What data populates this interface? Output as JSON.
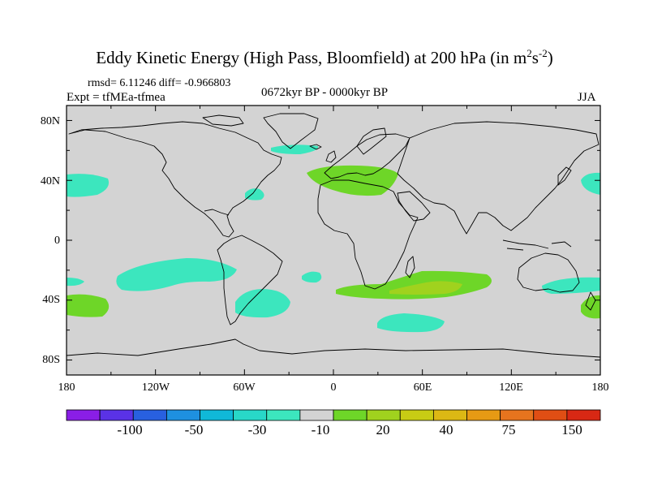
{
  "title": {
    "text": "Eddy Kinetic Energy (High Pass, Bloomfield) at 200 hPa (in m",
    "sup1": "2",
    "mid": "s",
    "sup2": "-2",
    "end": ")"
  },
  "subtitle": {
    "stats": "rmsd= 6.11246 diff= -0.966803",
    "expt": "Expt = tfMEa-tfmea",
    "period": "0672kyr BP - 0000kyr BP",
    "season": "JJA"
  },
  "map": {
    "lat_labels": [
      "80N",
      "40N",
      "0",
      "40S",
      "80S"
    ],
    "lon_labels": [
      "180",
      "120W",
      "60W",
      "0",
      "60E",
      "120E",
      "180"
    ],
    "background_color": "#d3d3d3"
  },
  "colorbar": {
    "colors": [
      "#8a1ee6",
      "#5a32e6",
      "#2860e0",
      "#1e90e0",
      "#10b8d8",
      "#28d8c8",
      "#3ce6be",
      "#d3d3d3",
      "#6ed628",
      "#a0d21e",
      "#c8cc14",
      "#dcb814",
      "#e69a14",
      "#e6741e",
      "#e04e14",
      "#d82814"
    ],
    "labels": [
      "-100",
      "-50",
      "-30",
      "-10",
      "20",
      "40",
      "75",
      "150"
    ]
  },
  "chart_data": {
    "type": "heatmap",
    "title": "Eddy Kinetic Energy (High Pass, Bloomfield) at 200 hPa (in m^2 s^-2)",
    "projection": "cylindrical equidistant, longitude -180 to 180, latitude -90 to 90",
    "xlabel": "",
    "ylabel": "",
    "xlim": [
      -180,
      180
    ],
    "ylim": [
      -90,
      90
    ],
    "colorbar_levels": [
      -100,
      -50,
      -30,
      -10,
      20,
      40,
      75,
      150
    ],
    "anomaly_regions": [
      {
        "name": "North Pacific east",
        "sign": "negative",
        "class": "-10 to -30",
        "lon": [
          -180,
          -152
        ],
        "lat": [
          32,
          45
        ]
      },
      {
        "name": "North Pacific west",
        "sign": "negative",
        "class": "-10 to -30",
        "lon": [
          146,
          180
        ],
        "lat": [
          32,
          45
        ]
      },
      {
        "name": "North Atlantic west",
        "sign": "negative",
        "class": "-10 to -30",
        "lon": [
          -60,
          -48
        ],
        "lat": [
          27,
          35
        ]
      },
      {
        "name": "Greenland/Iceland",
        "sign": "negative",
        "class": "-10 to -30",
        "lon": [
          -42,
          -10
        ],
        "lat": [
          59,
          64
        ]
      },
      {
        "name": "Mediterranean/Europe",
        "sign": "positive",
        "class": "10 to 20",
        "lon": [
          -15,
          40
        ],
        "lat": [
          29,
          50
        ]
      },
      {
        "name": "South Pacific",
        "sign": "negative",
        "class": "-10 to -30",
        "lon": [
          -145,
          -70
        ],
        "lat": [
          -35,
          -20
        ]
      },
      {
        "name": "South America east",
        "sign": "negative",
        "class": "-10 to -30",
        "lon": [
          -70,
          -30
        ],
        "lat": [
          -50,
          -30
        ]
      },
      {
        "name": "South Atlantic south",
        "sign": "negative",
        "class": "-10 to -30",
        "lon": [
          10,
          75
        ],
        "lat": [
          -62,
          -50
        ]
      },
      {
        "name": "Indian Ocean",
        "sign": "positive",
        "class": "10 to 20",
        "lon": [
          0,
          110
        ],
        "lat": [
          -43,
          -22
        ]
      },
      {
        "name": "Indian Ocean core",
        "sign": "positive",
        "class": "20 to 40",
        "lon": [
          30,
          90
        ],
        "lat": [
          -39,
          -29
        ]
      },
      {
        "name": "Southwest Indian",
        "sign": "negative",
        "class": "-10 to -30",
        "lon": [
          -20,
          -10
        ],
        "lat": [
          -26,
          -20
        ]
      },
      {
        "name": "Australia south",
        "sign": "negative",
        "class": "-10 to -30",
        "lon": [
          140,
          180
        ],
        "lat": [
          -35,
          -23
        ]
      },
      {
        "name": "New Zealand",
        "sign": "positive",
        "class": "10 to 20",
        "lon": [
          160,
          180
        ],
        "lat": [
          -52,
          -38
        ]
      },
      {
        "name": "Southeast Pacific",
        "sign": "positive",
        "class": "10 to 20",
        "lon": [
          -180,
          -155
        ],
        "lat": [
          -52,
          -38
        ]
      }
    ]
  }
}
